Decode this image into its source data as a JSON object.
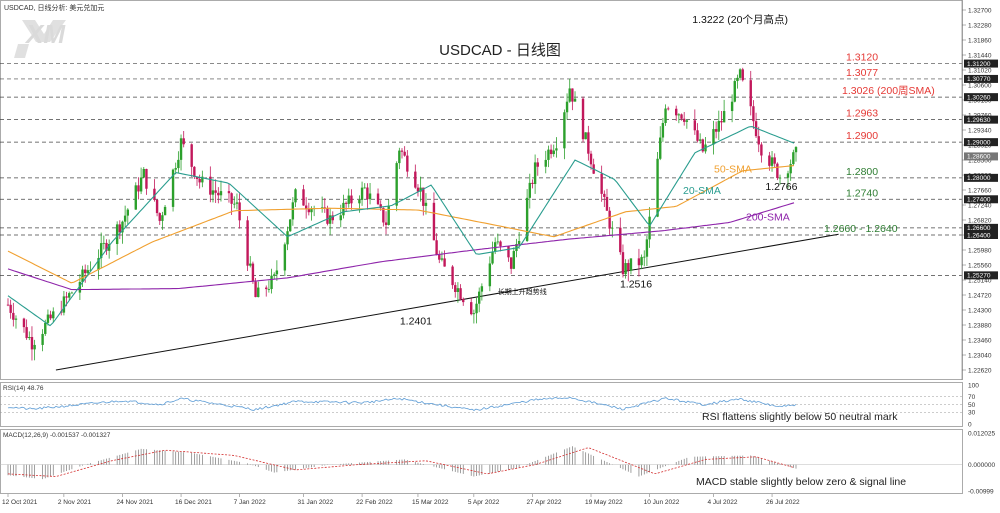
{
  "header": {
    "symbol_line": "USDCAD, 日线分析: 美元兑加元",
    "logo_text": "XM"
  },
  "colors": {
    "up": "#2ca02c",
    "down": "#c2185b",
    "sma20": "#2a9d8f",
    "sma50": "#f0a030",
    "sma200": "#8e24aa",
    "rsi": "#5b9bd5",
    "macd_hist": "#777777",
    "signal": "#d32f2f",
    "ann_red": "#e53935",
    "ann_green": "#2e7d32",
    "ann_purple": "#8e24aa"
  },
  "chart_data": [
    {
      "type": "candlestick",
      "title": "USDCAD - 日线图",
      "ylim": [
        1.2262,
        1.327
      ],
      "y_ticks": [
        "1.32700",
        "1.32280",
        "1.31860",
        "1.31440",
        "1.31020",
        "1.30600",
        "1.30180",
        "1.29760",
        "1.29340",
        "1.28920",
        "1.28500",
        "1.28080",
        "1.27660",
        "1.27240",
        "1.26820",
        "1.26400",
        "1.25980",
        "1.25560",
        "1.25140",
        "1.24720",
        "1.24300",
        "1.23880",
        "1.23460",
        "1.23040",
        "1.22620"
      ],
      "horizontal_levels": [
        {
          "value": 1.312,
          "axis_label": "1.31200",
          "annotation": "1.3120",
          "color": "red"
        },
        {
          "value": 1.3077,
          "axis_label": "1.30770",
          "annotation": "1.3077",
          "color": "red"
        },
        {
          "value": 1.3026,
          "axis_label": "1.30260",
          "annotation": "1.3026 (200周SMA)",
          "color": "red"
        },
        {
          "value": 1.2963,
          "axis_label": "1.29630",
          "annotation": "1.2963",
          "color": "red"
        },
        {
          "value": 1.29,
          "axis_label": "1.29000",
          "annotation": "1.2900",
          "color": "red"
        },
        {
          "value": 1.28,
          "axis_label": "1.28000",
          "annotation": "1.2800",
          "color": "green"
        },
        {
          "value": 1.274,
          "axis_label": "1.27400",
          "annotation": "1.2740",
          "color": "green"
        },
        {
          "value": 1.266,
          "axis_label": "1.26600",
          "annotation": "",
          "color": "green"
        },
        {
          "value": 1.264,
          "axis_label": "1.26400",
          "annotation": "1.2660 - 1.2640",
          "color": "green"
        },
        {
          "value": 1.2527,
          "axis_label": "1.25270",
          "annotation": "",
          "color": "green"
        }
      ],
      "current_price_label": "1.28600",
      "current_price": 1.286,
      "annotations": [
        {
          "text": "1.3222 (20个月高点)",
          "x": "2022-07-14",
          "y": 1.3222
        },
        {
          "text": "1.2401",
          "x": "2022-04-05",
          "y": 1.2401
        },
        {
          "text": "1.2516",
          "x": "2022-05-31",
          "y": 1.2516
        },
        {
          "text": "1.2766",
          "x": "2022-07-28",
          "y": 1.2766
        },
        {
          "text": "长期上升趋势线",
          "x": "2022-04-20",
          "y": 1.2475
        },
        {
          "text": "50-SMA",
          "x": "2022-07-20",
          "y": 1.2815
        },
        {
          "text": "20-SMA",
          "x": "2022-06-25",
          "y": 1.2755
        },
        {
          "text": "200-SMA",
          "x": "2022-07-28",
          "y": 1.268
        }
      ],
      "trendline": [
        {
          "x": "2021-10-30",
          "y": 1.2262
        },
        {
          "x": "2022-08-20",
          "y": 1.2642
        }
      ],
      "x_ticks": [
        "12 Oct 2021",
        "2 Nov 2021",
        "24 Nov 2021",
        "16 Dec 2021",
        "7 Jan 2022",
        "31 Jan 2022",
        "22 Feb 2022",
        "15 Mar 2022",
        "5 Apr 2022",
        "27 Apr 2022",
        "19 May 2022",
        "10 Jun 2022",
        "4 Jul 2022",
        "26 Jul 2022"
      ],
      "anchors": [
        {
          "d": "2021-10-12",
          "p": 1.2445
        },
        {
          "d": "2021-10-21",
          "p": 1.234
        },
        {
          "d": "2021-11-03",
          "p": 1.246
        },
        {
          "d": "2021-11-24",
          "p": 1.268
        },
        {
          "d": "2021-12-02",
          "p": 1.281
        },
        {
          "d": "2021-12-08",
          "p": 1.268
        },
        {
          "d": "2021-12-16",
          "p": 1.29
        },
        {
          "d": "2021-12-23",
          "p": 1.279
        },
        {
          "d": "2022-01-06",
          "p": 1.272
        },
        {
          "d": "2022-01-13",
          "p": 1.2465
        },
        {
          "d": "2022-01-20",
          "p": 1.2515
        },
        {
          "d": "2022-01-28",
          "p": 1.275
        },
        {
          "d": "2022-02-10",
          "p": 1.2685
        },
        {
          "d": "2022-02-23",
          "p": 1.2768
        },
        {
          "d": "2022-03-03",
          "p": 1.2675
        },
        {
          "d": "2022-03-08",
          "p": 1.2885
        },
        {
          "d": "2022-03-16",
          "p": 1.2765
        },
        {
          "d": "2022-03-23",
          "p": 1.2565
        },
        {
          "d": "2022-04-05",
          "p": 1.2425
        },
        {
          "d": "2022-04-13",
          "p": 1.262
        },
        {
          "d": "2022-04-19",
          "p": 1.2555
        },
        {
          "d": "2022-04-28",
          "p": 1.2825
        },
        {
          "d": "2022-05-06",
          "p": 1.2905
        },
        {
          "d": "2022-05-11",
          "p": 1.3055
        },
        {
          "d": "2022-05-20",
          "p": 1.283
        },
        {
          "d": "2022-05-31",
          "p": 1.2545
        },
        {
          "d": "2022-06-08",
          "p": 1.257
        },
        {
          "d": "2022-06-16",
          "p": 1.301
        },
        {
          "d": "2022-06-23",
          "p": 1.2975
        },
        {
          "d": "2022-06-30",
          "p": 1.2875
        },
        {
          "d": "2022-07-07",
          "p": 1.296
        },
        {
          "d": "2022-07-14",
          "p": 1.3085
        },
        {
          "d": "2022-07-22",
          "p": 1.2885
        },
        {
          "d": "2022-07-29",
          "p": 1.2805
        },
        {
          "d": "2022-08-04",
          "p": 1.2865
        }
      ],
      "sma20_anchors": [
        {
          "d": "2021-10-12",
          "p": 1.247
        },
        {
          "d": "2021-10-28",
          "p": 1.2385
        },
        {
          "d": "2021-11-20",
          "p": 1.262
        },
        {
          "d": "2021-12-14",
          "p": 1.2815
        },
        {
          "d": "2022-01-03",
          "p": 1.2785
        },
        {
          "d": "2022-01-25",
          "p": 1.2635
        },
        {
          "d": "2022-02-15",
          "p": 1.2705
        },
        {
          "d": "2022-03-05",
          "p": 1.2722
        },
        {
          "d": "2022-03-20",
          "p": 1.278
        },
        {
          "d": "2022-04-06",
          "p": 1.2585
        },
        {
          "d": "2022-04-22",
          "p": 1.2605
        },
        {
          "d": "2022-05-13",
          "p": 1.285
        },
        {
          "d": "2022-05-28",
          "p": 1.2795
        },
        {
          "d": "2022-06-10",
          "p": 1.2665
        },
        {
          "d": "2022-06-27",
          "p": 1.287
        },
        {
          "d": "2022-07-18",
          "p": 1.2945
        },
        {
          "d": "2022-08-04",
          "p": 1.2895
        }
      ],
      "sma50_anchors": [
        {
          "d": "2021-10-12",
          "p": 1.2595
        },
        {
          "d": "2021-11-05",
          "p": 1.2505
        },
        {
          "d": "2021-12-05",
          "p": 1.262
        },
        {
          "d": "2022-01-05",
          "p": 1.2708
        },
        {
          "d": "2022-02-10",
          "p": 1.2715
        },
        {
          "d": "2022-03-15",
          "p": 1.271
        },
        {
          "d": "2022-04-10",
          "p": 1.2672
        },
        {
          "d": "2022-05-05",
          "p": 1.2635
        },
        {
          "d": "2022-06-01",
          "p": 1.2705
        },
        {
          "d": "2022-06-20",
          "p": 1.272
        },
        {
          "d": "2022-07-15",
          "p": 1.282
        },
        {
          "d": "2022-08-04",
          "p": 1.2835
        }
      ],
      "sma200_anchors": [
        {
          "d": "2021-10-12",
          "p": 1.2545
        },
        {
          "d": "2021-11-05",
          "p": 1.2487
        },
        {
          "d": "2021-12-15",
          "p": 1.249
        },
        {
          "d": "2022-01-25",
          "p": 1.252
        },
        {
          "d": "2022-03-01",
          "p": 1.2565
        },
        {
          "d": "2022-04-05",
          "p": 1.2598
        },
        {
          "d": "2022-05-10",
          "p": 1.2628
        },
        {
          "d": "2022-06-15",
          "p": 1.2652
        },
        {
          "d": "2022-07-10",
          "p": 1.2675
        },
        {
          "d": "2022-08-04",
          "p": 1.2732
        }
      ]
    },
    {
      "type": "line",
      "title": "RSI(14) 48.76",
      "ylim": [
        0,
        100
      ],
      "y_ticks": [
        "100",
        "70",
        "50",
        "30",
        "0"
      ],
      "annotation": "RSI flattens slightly below 50 neutral mark",
      "anchors": [
        {
          "d": "2021-10-12",
          "p": 44
        },
        {
          "d": "2021-10-21",
          "p": 38
        },
        {
          "d": "2021-11-24",
          "p": 60
        },
        {
          "d": "2021-12-08",
          "p": 50
        },
        {
          "d": "2021-12-16",
          "p": 65
        },
        {
          "d": "2022-01-13",
          "p": 37
        },
        {
          "d": "2022-01-28",
          "p": 58
        },
        {
          "d": "2022-02-23",
          "p": 55
        },
        {
          "d": "2022-03-08",
          "p": 65
        },
        {
          "d": "2022-04-05",
          "p": 35
        },
        {
          "d": "2022-04-28",
          "p": 62
        },
        {
          "d": "2022-05-11",
          "p": 68
        },
        {
          "d": "2022-05-31",
          "p": 38
        },
        {
          "d": "2022-06-16",
          "p": 66
        },
        {
          "d": "2022-06-30",
          "p": 50
        },
        {
          "d": "2022-07-14",
          "p": 64
        },
        {
          "d": "2022-07-29",
          "p": 44
        },
        {
          "d": "2022-08-04",
          "p": 48.76
        }
      ]
    },
    {
      "type": "bar",
      "title": "MACD(12,26,9) -0.001537 -0.001327",
      "ylim": [
        -0.00999,
        0.012025
      ],
      "y_ticks": [
        "0.012025",
        "0.000000",
        "-0.00999"
      ],
      "annotation": "MACD stable slightly below zero & signal line",
      "hist_anchors": [
        {
          "d": "2021-10-12",
          "p": -0.004
        },
        {
          "d": "2021-10-25",
          "p": -0.0055
        },
        {
          "d": "2021-11-10",
          "p": 0.0
        },
        {
          "d": "2021-12-01",
          "p": 0.006
        },
        {
          "d": "2021-12-20",
          "p": 0.0045
        },
        {
          "d": "2022-01-10",
          "p": 0.0005
        },
        {
          "d": "2022-01-20",
          "p": -0.003
        },
        {
          "d": "2022-02-10",
          "p": 0.0
        },
        {
          "d": "2022-03-10",
          "p": 0.002
        },
        {
          "d": "2022-04-05",
          "p": -0.0045
        },
        {
          "d": "2022-04-22",
          "p": -0.001
        },
        {
          "d": "2022-05-12",
          "p": 0.007
        },
        {
          "d": "2022-06-06",
          "p": -0.0045
        },
        {
          "d": "2022-06-25",
          "p": 0.003
        },
        {
          "d": "2022-07-18",
          "p": 0.0035
        },
        {
          "d": "2022-08-04",
          "p": -0.0015
        }
      ],
      "signal_anchors": [
        {
          "d": "2021-10-12",
          "p": -0.0035
        },
        {
          "d": "2021-10-30",
          "p": -0.0045
        },
        {
          "d": "2021-11-20",
          "p": 0.0015
        },
        {
          "d": "2021-12-10",
          "p": 0.0055
        },
        {
          "d": "2022-01-05",
          "p": 0.0035
        },
        {
          "d": "2022-01-28",
          "p": -0.002
        },
        {
          "d": "2022-02-20",
          "p": 0.0
        },
        {
          "d": "2022-03-18",
          "p": 0.0015
        },
        {
          "d": "2022-04-10",
          "p": -0.0035
        },
        {
          "d": "2022-04-28",
          "p": 0.0
        },
        {
          "d": "2022-05-18",
          "p": 0.0065
        },
        {
          "d": "2022-06-12",
          "p": -0.0035
        },
        {
          "d": "2022-07-01",
          "p": 0.002
        },
        {
          "d": "2022-07-20",
          "p": 0.003
        },
        {
          "d": "2022-08-04",
          "p": -0.0013
        }
      ]
    }
  ]
}
